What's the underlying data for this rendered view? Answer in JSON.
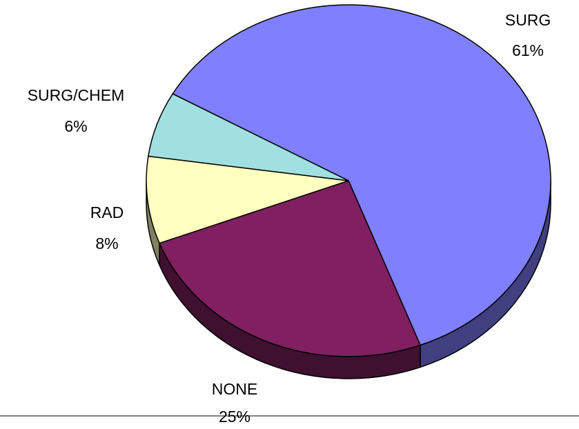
{
  "chart_data": {
    "type": "pie",
    "categories": [
      "SURG",
      "NONE",
      "RAD",
      "SURG/CHEM"
    ],
    "values": [
      61,
      25,
      8,
      6
    ],
    "value_labels": [
      "61%",
      "25%",
      "8%",
      "6%"
    ],
    "colors": [
      "#8080ff",
      "#802060",
      "#ffffc0",
      "#a0e0e0"
    ]
  }
}
